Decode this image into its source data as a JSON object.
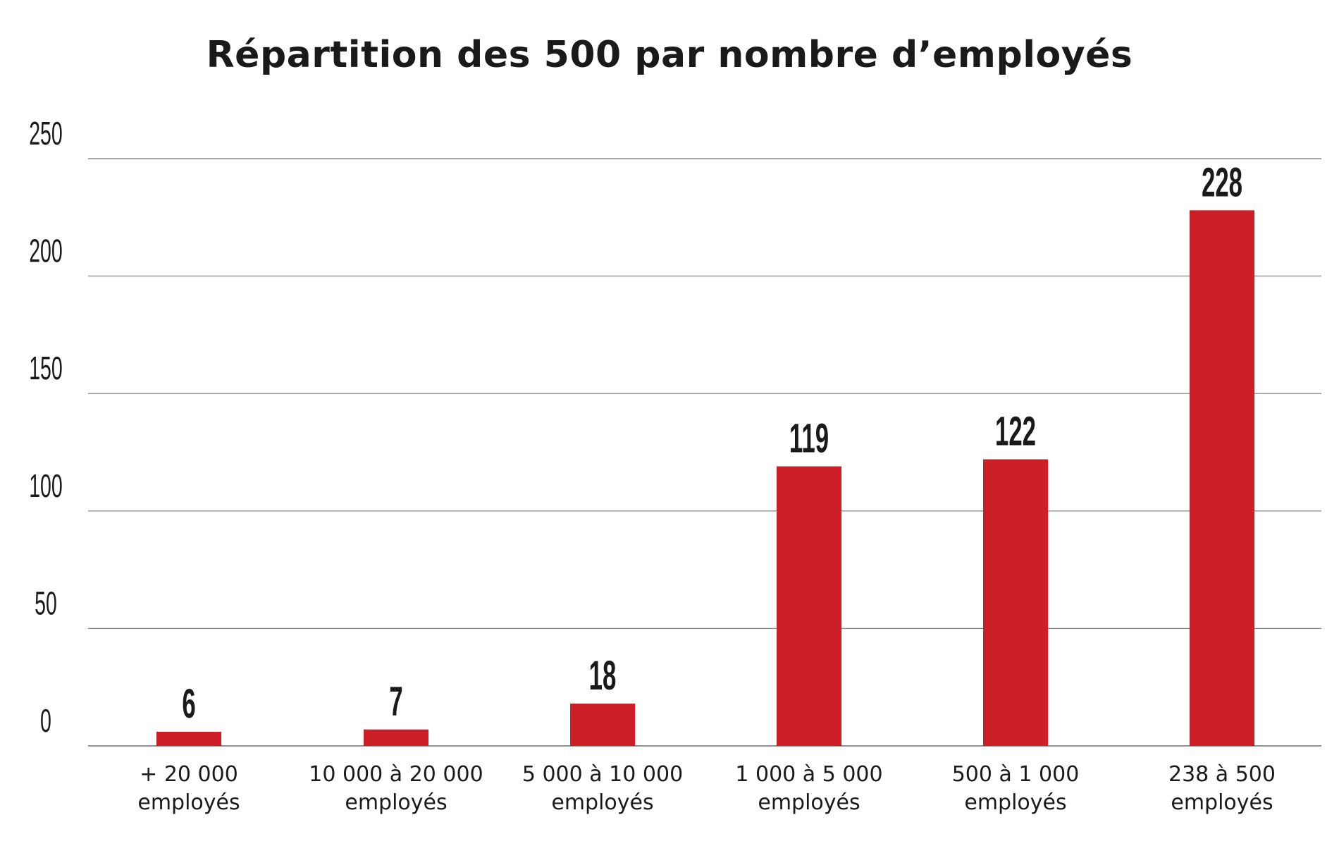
{
  "chart_data": {
    "type": "bar",
    "title": "Répartition des 500 par nombre d’employés",
    "categories": [
      [
        "+ 20 000",
        "employés"
      ],
      [
        "10 000 à 20 000",
        "employés"
      ],
      [
        "5 000 à 10 000",
        "employés"
      ],
      [
        "1 000 à 5 000",
        "employés"
      ],
      [
        "500 à 1 000",
        "employés"
      ],
      [
        "238 à 500",
        "employés"
      ]
    ],
    "values": [
      6,
      7,
      18,
      119,
      122,
      228
    ],
    "data_labels": [
      "6",
      "7",
      "18",
      "119",
      "122",
      "228"
    ],
    "y_ticks": [
      0,
      50,
      100,
      150,
      200,
      250
    ],
    "ylim": [
      0,
      250
    ],
    "xlabel": "",
    "ylabel": "",
    "grid": true,
    "legend": "none",
    "bar_color": "#cc1f28"
  }
}
